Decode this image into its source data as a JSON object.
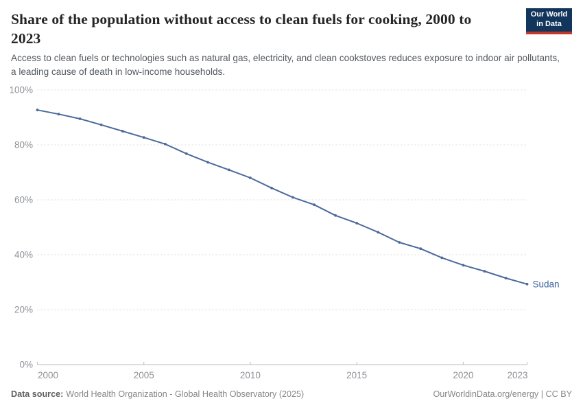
{
  "header": {
    "title": "Share of the population without access to clean fuels for cooking, 2000 to 2023",
    "subtitle": "Access to clean fuels or technologies such as natural gas, electricity, and clean cookstoves reduces exposure to indoor air pollutants, a leading cause of death in low-income households.",
    "logo": {
      "line1": "Our World",
      "line2": "in Data",
      "bg_color": "#12355c",
      "accent_color": "#c0392b"
    }
  },
  "chart_data": {
    "type": "line",
    "title": "Share of the population without access to clean fuels for cooking, 2000 to 2023",
    "xlabel": "",
    "ylabel": "",
    "xlim": [
      2000,
      2023
    ],
    "ylim": [
      0,
      100
    ],
    "grid": "horizontal-dashed",
    "legend_position": "end-of-line-label",
    "x": [
      2000,
      2001,
      2002,
      2003,
      2004,
      2005,
      2006,
      2007,
      2008,
      2009,
      2010,
      2011,
      2012,
      2013,
      2014,
      2015,
      2016,
      2017,
      2018,
      2019,
      2020,
      2021,
      2022,
      2023
    ],
    "series": [
      {
        "name": "Sudan",
        "color": "#4c6a9c",
        "values": [
          92.7,
          91.2,
          89.5,
          87.3,
          85.0,
          82.7,
          80.3,
          76.8,
          73.7,
          70.9,
          68.0,
          64.3,
          60.9,
          58.2,
          54.3,
          51.5,
          48.2,
          44.5,
          42.2,
          38.9,
          36.2,
          34.0,
          31.5,
          29.3
        ]
      }
    ],
    "yticks": [
      {
        "value": 0,
        "label": "0%"
      },
      {
        "value": 20,
        "label": "20%"
      },
      {
        "value": 40,
        "label": "40%"
      },
      {
        "value": 60,
        "label": "60%"
      },
      {
        "value": 80,
        "label": "80%"
      },
      {
        "value": 100,
        "label": "100%"
      }
    ],
    "xticks": [
      {
        "value": 2000,
        "label": "2000"
      },
      {
        "value": 2005,
        "label": "2005"
      },
      {
        "value": 2010,
        "label": "2010"
      },
      {
        "value": 2015,
        "label": "2015"
      },
      {
        "value": 2020,
        "label": "2020"
      },
      {
        "value": 2023,
        "label": "2023"
      }
    ],
    "end_label": "Sudan",
    "colors": {
      "line": "#4c6a9c",
      "end_label": "#3d649f",
      "grid": "#dcdcdc",
      "axis": "#bdbdbd",
      "tick_text": "#8e9196"
    }
  },
  "footer": {
    "source_label": "Data source:",
    "source_text": "World Health Organization - Global Health Observatory (2025)",
    "credit": "OurWorldinData.org/energy | CC BY"
  }
}
